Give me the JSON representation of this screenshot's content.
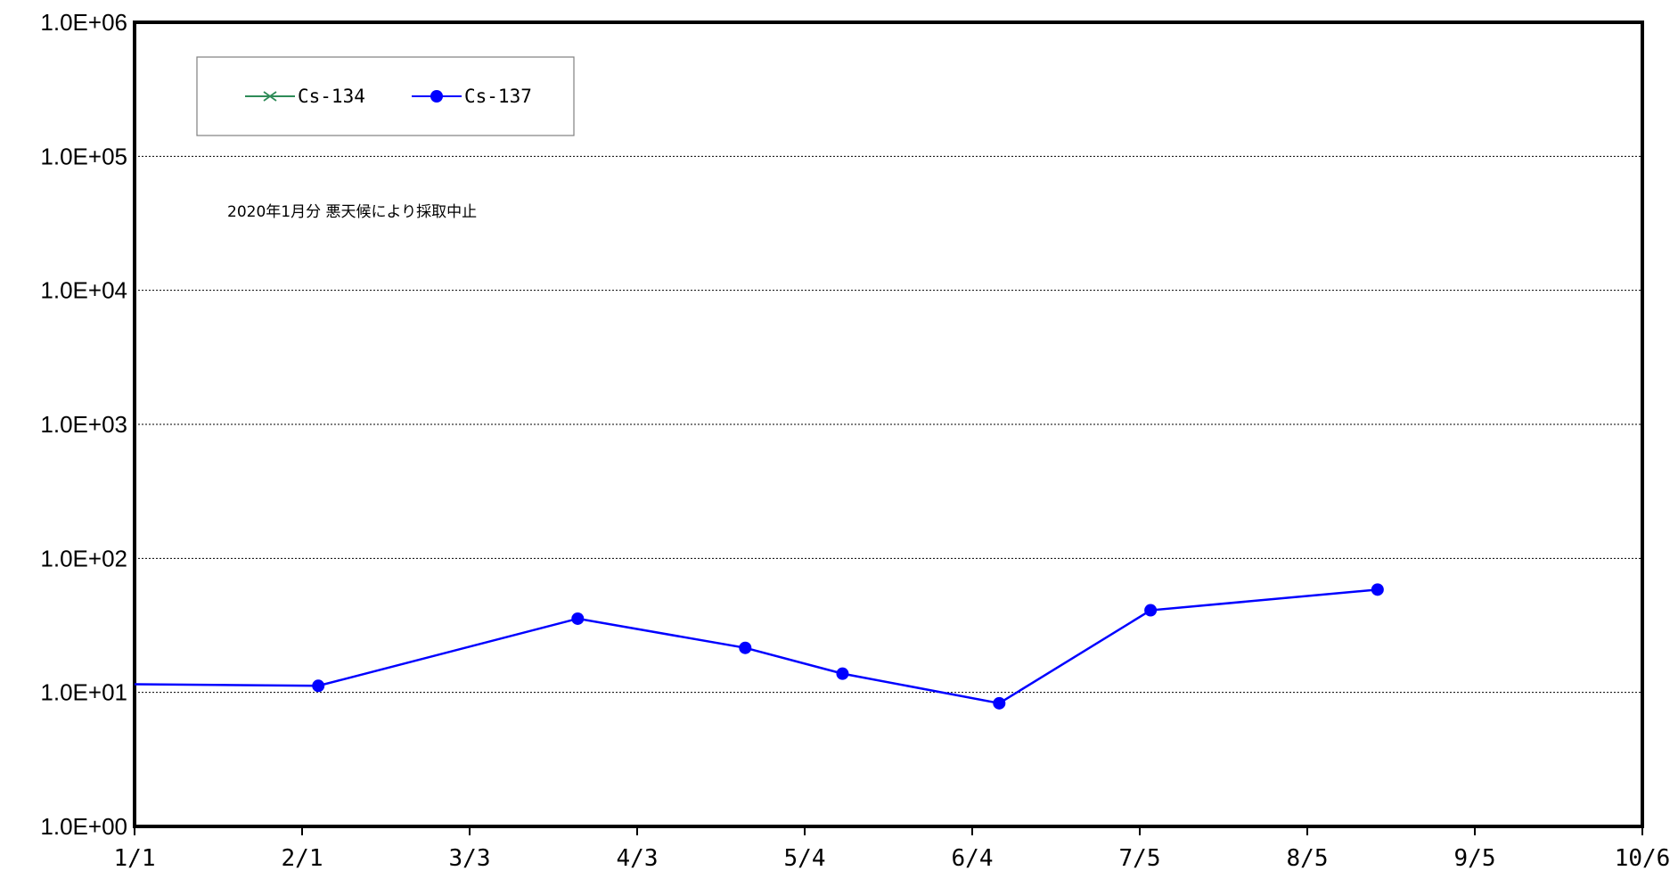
{
  "chart_data": {
    "type": "line",
    "y_scale": "log",
    "ylim": [
      1,
      1000000
    ],
    "y_ticks": [
      1,
      10,
      100,
      1000,
      10000,
      100000,
      1000000
    ],
    "y_tick_labels": [
      "1.0E+00",
      "1.0E+01",
      "1.0E+02",
      "1.0E+03",
      "1.0E+04",
      "1.0E+05",
      "1.0E+06"
    ],
    "xlim": [
      "2020-01-01",
      "2020-10-06"
    ],
    "x_ticks": [
      "2020-01-01",
      "2020-02-01",
      "2020-03-03",
      "2020-04-03",
      "2020-05-04",
      "2020-06-04",
      "2020-07-05",
      "2020-08-05",
      "2020-09-05",
      "2020-10-06"
    ],
    "x_tick_labels": [
      "1/1",
      "2/1",
      "3/3",
      "4/3",
      "5/4",
      "6/4",
      "7/5",
      "8/5",
      "9/5",
      "10/6"
    ],
    "grid": "horizontal",
    "legend_position": "top-left",
    "series": [
      {
        "name": "Cs-134",
        "color": "#2e8b57",
        "marker": "x",
        "points": []
      },
      {
        "name": "Cs-137",
        "color": "#0000ff",
        "marker": "circle",
        "points": [
          {
            "x": "2020-01-01",
            "y": 11.5
          },
          {
            "x": "2020-02-04",
            "y": 11.2
          },
          {
            "x": "2020-03-23",
            "y": 35.5
          },
          {
            "x": "2020-04-23",
            "y": 21.5
          },
          {
            "x": "2020-05-11",
            "y": 13.8
          },
          {
            "x": "2020-06-09",
            "y": 8.3
          },
          {
            "x": "2020-07-07",
            "y": 41.0
          },
          {
            "x": "2020-08-18",
            "y": 58.5
          }
        ]
      }
    ],
    "annotations": [
      {
        "text": "2020年1月分 悪天候により採取中止"
      }
    ]
  }
}
